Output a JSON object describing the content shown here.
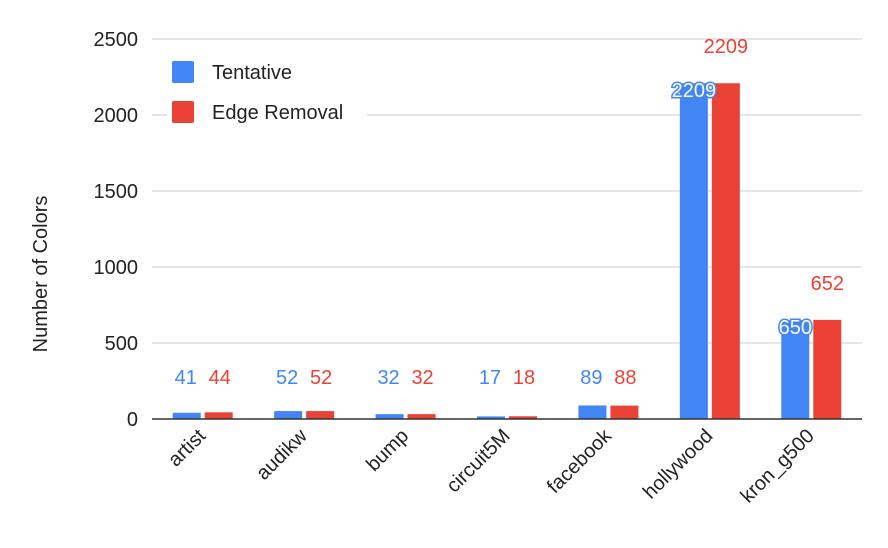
{
  "chart_data": {
    "type": "bar",
    "title": "",
    "xlabel": "",
    "ylabel": "Number of Colors",
    "ylim": [
      0,
      2500
    ],
    "yticks": [
      0,
      500,
      1000,
      1500,
      2000,
      2500
    ],
    "categories": [
      "artist",
      "audikw",
      "bump",
      "circuit5M",
      "facebook",
      "hollywood",
      "kron_g500"
    ],
    "series": [
      {
        "name": "Tentative",
        "color": "#4285F4",
        "values": [
          41,
          52,
          32,
          17,
          89,
          2209,
          650
        ]
      },
      {
        "name": "Edge Removal",
        "color": "#EA4335",
        "values": [
          44,
          52,
          32,
          18,
          88,
          2209,
          652
        ]
      }
    ],
    "grid": true,
    "legend": "top-left"
  }
}
